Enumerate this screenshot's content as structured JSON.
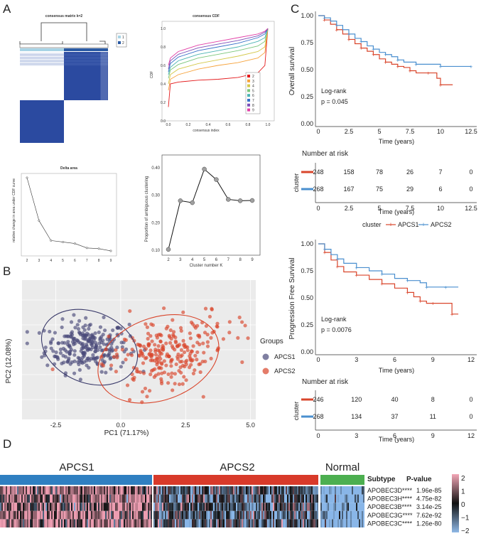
{
  "panels": {
    "a": "A",
    "b": "B",
    "c": "C",
    "d": "D"
  },
  "consensus_matrix": {
    "title": "consensus matrix k=2",
    "legend": [
      "1",
      "2"
    ],
    "colors": {
      "dark": "#2b4aa0",
      "light": "#ffffff",
      "c1": "#a8d4e6",
      "c2": "#2a5aa4"
    }
  },
  "chart_data": [
    {
      "id": "cdf",
      "type": "line",
      "title": "consensus CDF",
      "xlabel": "consensus index",
      "ylabel": "CDF",
      "xticks": [
        "0.0",
        "0.2",
        "0.4",
        "0.6",
        "0.8",
        "1.0"
      ],
      "yticks": [
        "0.0",
        "0.2",
        "0.4",
        "0.6",
        "0.8",
        "1.0"
      ],
      "legend": [
        "2",
        "3",
        "4",
        "5",
        "6",
        "7",
        "8",
        "9"
      ],
      "series": [
        {
          "name": "2",
          "color": "#e41a1c",
          "x": [
            0,
            0.02,
            0.1,
            0.3,
            0.5,
            0.7,
            0.9,
            0.97,
            1.0
          ],
          "y": [
            0.15,
            0.4,
            0.42,
            0.44,
            0.45,
            0.47,
            0.52,
            0.6,
            1.0
          ]
        },
        {
          "name": "3",
          "color": "#f6a33c",
          "x": [
            0,
            0.02,
            0.1,
            0.3,
            0.5,
            0.7,
            0.9,
            0.97,
            1.0
          ],
          "y": [
            0.33,
            0.45,
            0.5,
            0.56,
            0.6,
            0.63,
            0.68,
            0.74,
            1.0
          ]
        },
        {
          "name": "4",
          "color": "#d4c84a",
          "x": [
            0,
            0.02,
            0.1,
            0.3,
            0.5,
            0.7,
            0.9,
            0.97,
            1.0
          ],
          "y": [
            0.4,
            0.5,
            0.56,
            0.62,
            0.66,
            0.7,
            0.75,
            0.8,
            1.0
          ]
        },
        {
          "name": "5",
          "color": "#7bc67b",
          "x": [
            0,
            0.02,
            0.1,
            0.3,
            0.5,
            0.7,
            0.9,
            0.97,
            1.0
          ],
          "y": [
            0.46,
            0.55,
            0.61,
            0.68,
            0.72,
            0.76,
            0.81,
            0.86,
            1.0
          ]
        },
        {
          "name": "6",
          "color": "#4bb3b3",
          "x": [
            0,
            0.02,
            0.1,
            0.3,
            0.5,
            0.7,
            0.9,
            0.97,
            1.0
          ],
          "y": [
            0.5,
            0.58,
            0.65,
            0.72,
            0.76,
            0.8,
            0.86,
            0.9,
            1.0
          ]
        },
        {
          "name": "7",
          "color": "#3771c8",
          "x": [
            0,
            0.02,
            0.1,
            0.3,
            0.5,
            0.7,
            0.9,
            0.97,
            1.0
          ],
          "y": [
            0.53,
            0.62,
            0.69,
            0.76,
            0.8,
            0.84,
            0.9,
            0.94,
            1.0
          ]
        },
        {
          "name": "8",
          "color": "#7b4fb8",
          "x": [
            0,
            0.02,
            0.1,
            0.3,
            0.5,
            0.7,
            0.9,
            0.97,
            1.0
          ],
          "y": [
            0.56,
            0.65,
            0.72,
            0.79,
            0.83,
            0.87,
            0.92,
            0.96,
            1.0
          ]
        },
        {
          "name": "9",
          "color": "#e23fa6",
          "x": [
            0,
            0.02,
            0.1,
            0.3,
            0.5,
            0.7,
            0.9,
            0.97,
            1.0
          ],
          "y": [
            0.6,
            0.68,
            0.75,
            0.82,
            0.86,
            0.9,
            0.94,
            0.97,
            1.0
          ]
        }
      ]
    },
    {
      "id": "delta",
      "type": "line",
      "title": "Delta area",
      "xlabel": "",
      "ylabel": "relative change in area under CDF curve",
      "x": [
        2,
        3,
        4,
        5,
        6,
        7,
        8,
        9
      ],
      "y": [
        1.0,
        0.42,
        0.15,
        0.13,
        0.11,
        0.05,
        0.04,
        0.01
      ],
      "xticks": [
        "2",
        "3",
        "4",
        "5",
        "6",
        "7",
        "8",
        "9"
      ]
    },
    {
      "id": "pac",
      "type": "line",
      "title": "",
      "xlabel": "Cluster number K",
      "ylabel": "Proportion of ambiguous clustering",
      "x": [
        2,
        3,
        4,
        5,
        6,
        7,
        8,
        9
      ],
      "y": [
        0.103,
        0.28,
        0.273,
        0.395,
        0.357,
        0.285,
        0.28,
        0.281
      ],
      "xticks": [
        "2",
        "3",
        "4",
        "5",
        "6",
        "7",
        "8",
        "9"
      ],
      "yticks": [
        "0.10",
        "0.20",
        "0.30",
        "0.40"
      ]
    },
    {
      "id": "pca",
      "type": "scatter",
      "xlabel": "PC1 (71.17%)",
      "ylabel": "PC2 (12.08%)",
      "xticks": [
        "-2.5",
        "0.0",
        "2.5",
        "5.0"
      ],
      "legend_title": "Groups",
      "groups": [
        {
          "name": "APCS1",
          "color": "#4a4a7a",
          "center": [
            -1.3,
            0.2
          ],
          "spread": [
            1.0,
            0.95
          ],
          "n": 260
        },
        {
          "name": "APCS2",
          "color": "#d9452b",
          "center": [
            1.4,
            -0.4
          ],
          "spread": [
            1.25,
            1.15
          ],
          "n": 260
        }
      ]
    },
    {
      "id": "os",
      "type": "line",
      "xlabel": "Time (years)",
      "ylabel": "Overall survival",
      "xticks": [
        "0",
        "2.5",
        "5",
        "7.5",
        "10",
        "12.5"
      ],
      "yticks": [
        "0.00",
        "0.25",
        "0.50",
        "0.75",
        "1.00"
      ],
      "series": [
        {
          "name": "APCS1",
          "color": "#d9452b",
          "x": [
            0,
            0.5,
            1,
            1.5,
            2,
            2.5,
            3,
            3.5,
            4,
            4.5,
            5,
            5.5,
            6,
            6.5,
            7,
            7.5,
            8,
            9,
            9.7,
            10,
            11
          ],
          "y": [
            1.0,
            0.96,
            0.92,
            0.87,
            0.83,
            0.78,
            0.74,
            0.7,
            0.67,
            0.64,
            0.6,
            0.57,
            0.55,
            0.53,
            0.52,
            0.49,
            0.47,
            0.47,
            0.42,
            0.36,
            0.36
          ]
        },
        {
          "name": "APCS2",
          "color": "#4a8fcf",
          "x": [
            0,
            0.5,
            1,
            1.5,
            2,
            2.5,
            3,
            3.5,
            4,
            4.5,
            5,
            5.5,
            6,
            6.5,
            7,
            8,
            9,
            10,
            11,
            12.5
          ],
          "y": [
            1.0,
            0.98,
            0.95,
            0.91,
            0.87,
            0.83,
            0.79,
            0.76,
            0.72,
            0.69,
            0.66,
            0.64,
            0.62,
            0.59,
            0.57,
            0.55,
            0.55,
            0.53,
            0.53,
            0.53
          ]
        }
      ],
      "annotation": [
        "Log-rank",
        "p = 0.045"
      ]
    },
    {
      "id": "os_risk",
      "type": "table",
      "title": "Number at risk",
      "ylabel": "cluster",
      "xticks": [
        "0",
        "2.5",
        "5",
        "7.5",
        "10",
        "12.5"
      ],
      "xlabel": "Time (years)",
      "rows": [
        {
          "name": "APCS1",
          "color": "#d9452b",
          "values": [
            "248",
            "158",
            "78",
            "26",
            "7",
            "0"
          ]
        },
        {
          "name": "APCS2",
          "color": "#4a8fcf",
          "values": [
            "268",
            "167",
            "75",
            "29",
            "6",
            "0"
          ]
        }
      ]
    },
    {
      "id": "pfs",
      "type": "line",
      "xlabel": "Time (years)",
      "ylabel": "Progression Free Survival",
      "xticks": [
        "0",
        "3",
        "6",
        "9",
        "12"
      ],
      "yticks": [
        "0.00",
        "0.25",
        "0.50",
        "0.75",
        "1.00"
      ],
      "series": [
        {
          "name": "APCS1",
          "color": "#d9452b",
          "x": [
            0,
            0.5,
            1,
            1.5,
            2,
            3,
            4,
            5,
            6,
            7,
            7.5,
            8,
            8.5,
            9,
            10,
            10.5,
            11
          ],
          "y": [
            1.0,
            0.92,
            0.85,
            0.79,
            0.74,
            0.71,
            0.67,
            0.63,
            0.59,
            0.55,
            0.51,
            0.47,
            0.45,
            0.45,
            0.45,
            0.35,
            0.35
          ]
        },
        {
          "name": "APCS2",
          "color": "#4a8fcf",
          "x": [
            0,
            0.5,
            1,
            1.5,
            2,
            3,
            4,
            5,
            6,
            7,
            8,
            8.5,
            9,
            10,
            11
          ],
          "y": [
            1.0,
            0.95,
            0.9,
            0.86,
            0.82,
            0.78,
            0.75,
            0.72,
            0.68,
            0.66,
            0.64,
            0.6,
            0.6,
            0.6,
            0.6
          ]
        }
      ],
      "annotation": [
        "Log-rank",
        "p = 0.0076"
      ]
    },
    {
      "id": "pfs_risk",
      "type": "table",
      "title": "Number at risk",
      "ylabel": "cluster",
      "xticks": [
        "0",
        "3",
        "6",
        "9",
        "12"
      ],
      "xlabel": "Time (years)",
      "rows": [
        {
          "name": "APCS1",
          "color": "#d9452b",
          "values": [
            "246",
            "120",
            "40",
            "8",
            "0"
          ]
        },
        {
          "name": "APCS2",
          "color": "#4a8fcf",
          "values": [
            "268",
            "134",
            "37",
            "11",
            "0"
          ]
        }
      ]
    },
    {
      "id": "heatmap",
      "type": "heatmap",
      "groups": [
        {
          "name": "APCS1",
          "color": "#2f7fc1"
        },
        {
          "name": "APCS2",
          "color": "#d83a2a"
        },
        {
          "name": "Normal",
          "color": "#4caf50"
        }
      ],
      "header": {
        "subtype": "Subtype",
        "pvalue": "P-value"
      },
      "rows": [
        {
          "gene": "APOBEC3D****",
          "p": "1.96e-85"
        },
        {
          "gene": "APOBEC3H****",
          "p": "4.75e-82"
        },
        {
          "gene": "APOBEC3B****",
          "p": "3.14e-25"
        },
        {
          "gene": "APOBEC3G****",
          "p": "7.62e-92"
        },
        {
          "gene": "APOBEC3C****",
          "p": "1.26e-80"
        }
      ],
      "colorbar": [
        "2",
        "1",
        "0",
        "−1",
        "−2"
      ]
    }
  ],
  "km_legend": {
    "title": "cluster",
    "items": [
      "APCS1",
      "APCS2"
    ]
  }
}
